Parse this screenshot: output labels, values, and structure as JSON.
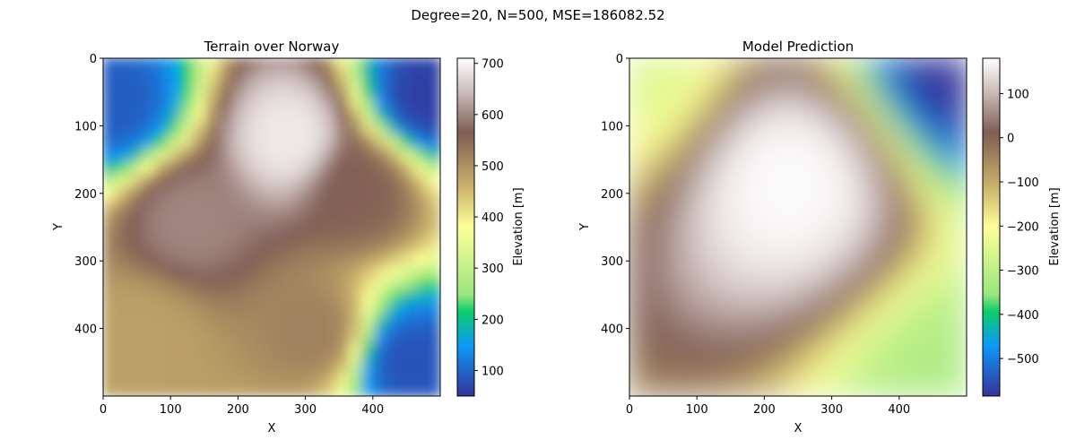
{
  "figure": {
    "suptitle": "Degree=20, N=500, MSE=186082.52"
  },
  "colors": {
    "terrain_stops": [
      "#333399",
      "#0d99f9",
      "#0ccc68",
      "#99e67f",
      "#feff98",
      "#cbb26b",
      "#9a7c5b",
      "#805d55",
      "#cbbbb8",
      "#ffffff"
    ]
  },
  "chart_data": [
    {
      "type": "heatmap",
      "title": "Terrain over Norway",
      "xlabel": "X",
      "ylabel": "Y",
      "x_ticks": [
        0,
        100,
        200,
        300,
        400
      ],
      "y_ticks": [
        0,
        100,
        200,
        300,
        400
      ],
      "xlim": [
        0,
        500
      ],
      "ylim": [
        500,
        0
      ],
      "colormap": "terrain",
      "colorbar": {
        "label": "Elevation [m]",
        "range": [
          50,
          710
        ],
        "ticks": [
          100,
          200,
          300,
          400,
          500,
          600,
          700
        ]
      },
      "features": [
        {
          "kind": "high",
          "x": 280,
          "y": 120,
          "value": 690
        },
        {
          "kind": "high",
          "x": 130,
          "y": 240,
          "value": 600
        },
        {
          "kind": "high",
          "x": 380,
          "y": 190,
          "value": 560
        },
        {
          "kind": "high",
          "x": 320,
          "y": 410,
          "value": 520
        },
        {
          "kind": "high",
          "x": 60,
          "y": 410,
          "value": 480
        },
        {
          "kind": "low",
          "x": 480,
          "y": 60,
          "value": 60
        },
        {
          "kind": "low",
          "x": 20,
          "y": 70,
          "value": 90
        },
        {
          "kind": "low",
          "x": 450,
          "y": 450,
          "value": 80
        }
      ]
    },
    {
      "type": "heatmap",
      "title": "Model Prediction",
      "xlabel": "X",
      "ylabel": "Y",
      "x_ticks": [
        0,
        100,
        200,
        300,
        400
      ],
      "y_ticks": [
        0,
        100,
        200,
        300,
        400
      ],
      "xlim": [
        0,
        500
      ],
      "ylim": [
        500,
        0
      ],
      "colormap": "terrain",
      "colorbar": {
        "label": "Elevation [m]",
        "range": [
          -585,
          180
        ],
        "ticks": [
          -500,
          -400,
          -300,
          -200,
          -100,
          0,
          100
        ]
      },
      "features": [
        {
          "kind": "high",
          "x": 240,
          "y": 185,
          "value": 175
        },
        {
          "kind": "low",
          "x": 500,
          "y": 0,
          "value": -585
        },
        {
          "kind": "low",
          "x": 500,
          "y": 500,
          "value": -320
        },
        {
          "kind": "low",
          "x": 0,
          "y": 0,
          "value": -250
        }
      ]
    }
  ]
}
